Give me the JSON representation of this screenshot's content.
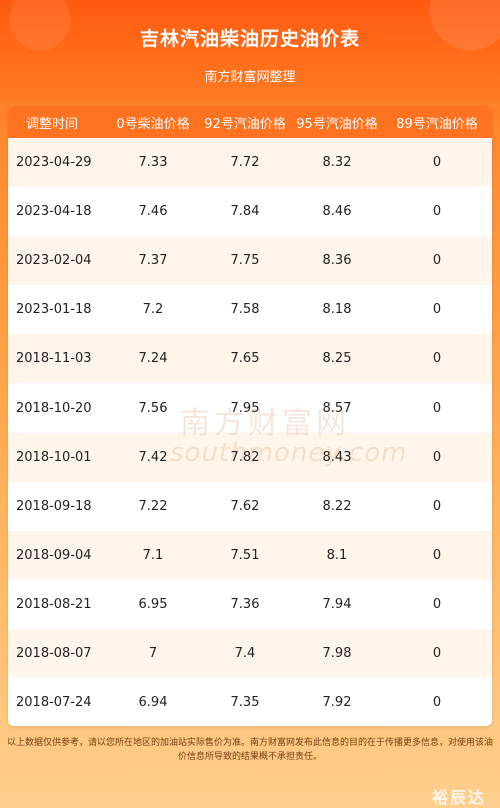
{
  "header": {
    "title": "吉林汽油柴油历史油价表",
    "subtitle": "南方财富网整理"
  },
  "table": {
    "columns": [
      "调整时间",
      "0号柴油价格",
      "92号汽油价格",
      "95号汽油价格",
      "89号汽油价格"
    ],
    "rows": [
      [
        "2023-04-29",
        "7.33",
        "7.72",
        "8.32",
        "0"
      ],
      [
        "2023-04-18",
        "7.46",
        "7.84",
        "8.46",
        "0"
      ],
      [
        "2023-02-04",
        "7.37",
        "7.75",
        "8.36",
        "0"
      ],
      [
        "2023-01-18",
        "7.2",
        "7.58",
        "8.18",
        "0"
      ],
      [
        "2018-11-03",
        "7.24",
        "7.65",
        "8.25",
        "0"
      ],
      [
        "2018-10-20",
        "7.56",
        "7.95",
        "8.57",
        "0"
      ],
      [
        "2018-10-01",
        "7.42",
        "7.82",
        "8.43",
        "0"
      ],
      [
        "2018-09-18",
        "7.22",
        "7.62",
        "8.22",
        "0"
      ],
      [
        "2018-09-04",
        "7.1",
        "7.51",
        "8.1",
        "0"
      ],
      [
        "2018-08-21",
        "6.95",
        "7.36",
        "7.94",
        "0"
      ],
      [
        "2018-08-07",
        "7",
        "7.4",
        "7.98",
        "0"
      ],
      [
        "2018-07-24",
        "6.94",
        "7.35",
        "7.92",
        "0"
      ]
    ]
  },
  "watermark": {
    "cn": "南方财富网",
    "en": "southmoney.com"
  },
  "footer": {
    "disclaimer": "以上数据仅供参考，请以您所在地区的加油站实际售价为准。南方财富网发布此信息的目的在于传播更多信息，对使用该油价信息所导致的结果概不承担责任。"
  },
  "corner_watermark": "裕辰达",
  "colors": {
    "header": "#ff5a10",
    "table_header": "#ff7320",
    "row_alt": "#fff5ea"
  }
}
